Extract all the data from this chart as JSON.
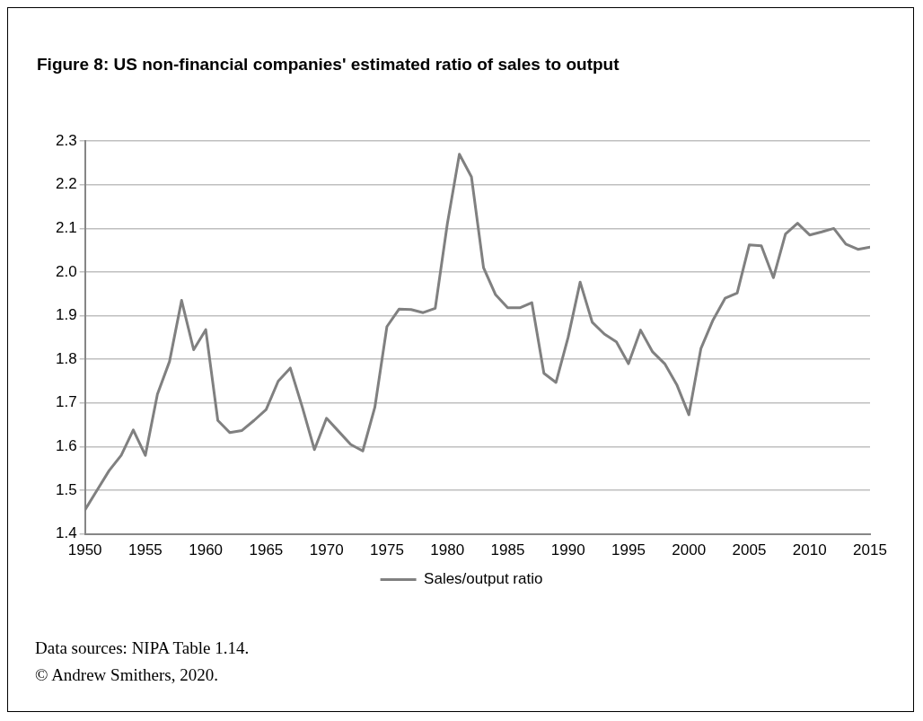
{
  "chart_data": {
    "type": "line",
    "title": "Figure 8: US non-financial companies' estimated ratio of sales to output",
    "x": [
      1950,
      1951,
      1952,
      1953,
      1954,
      1955,
      1956,
      1957,
      1958,
      1959,
      1960,
      1961,
      1962,
      1963,
      1964,
      1965,
      1966,
      1967,
      1968,
      1969,
      1970,
      1971,
      1972,
      1973,
      1974,
      1975,
      1976,
      1977,
      1978,
      1979,
      1980,
      1981,
      1982,
      1983,
      1984,
      1985,
      1986,
      1987,
      1988,
      1989,
      1990,
      1991,
      1992,
      1993,
      1994,
      1995,
      1996,
      1997,
      1998,
      1999,
      2000,
      2001,
      2002,
      2003,
      2004,
      2005,
      2006,
      2007,
      2008,
      2009,
      2010,
      2011,
      2012,
      2013,
      2014,
      2015
    ],
    "series": [
      {
        "name": "Sales/output ratio",
        "color": "#808080",
        "values": [
          1.455,
          1.5,
          1.545,
          1.58,
          1.638,
          1.58,
          1.72,
          1.795,
          1.935,
          1.822,
          1.868,
          1.66,
          1.632,
          1.637,
          1.66,
          1.685,
          1.75,
          1.78,
          1.69,
          1.593,
          1.665,
          1.635,
          1.605,
          1.59,
          1.69,
          1.875,
          1.915,
          1.914,
          1.907,
          1.917,
          2.11,
          2.27,
          2.218,
          2.01,
          1.948,
          1.918,
          1.918,
          1.93,
          1.768,
          1.747,
          1.85,
          1.977,
          1.885,
          1.858,
          1.84,
          1.79,
          1.867,
          1.817,
          1.79,
          1.742,
          1.673,
          1.825,
          1.89,
          1.94,
          1.952,
          2.062,
          2.06,
          1.987,
          2.087,
          2.112,
          2.085,
          2.092,
          2.1,
          2.064,
          2.052,
          2.057
        ]
      }
    ],
    "xlim": [
      1950,
      2015
    ],
    "xticks": [
      1950,
      1955,
      1960,
      1965,
      1970,
      1975,
      1980,
      1985,
      1990,
      1995,
      2000,
      2005,
      2010,
      2015
    ],
    "ylim": [
      1.4,
      2.3
    ],
    "yticks": [
      {
        "value": 1.4,
        "label": "1.4"
      },
      {
        "value": 1.5,
        "label": "1.5"
      },
      {
        "value": 1.6,
        "label": "1.6"
      },
      {
        "value": 1.7,
        "label": "1.7"
      },
      {
        "value": 1.8,
        "label": "1.8"
      },
      {
        "value": 1.9,
        "label": "1.9"
      },
      {
        "value": 2.0,
        "label": "2.0"
      },
      {
        "value": 2.1,
        "label": "2.1"
      },
      {
        "value": 2.2,
        "label": "2.2"
      },
      {
        "value": 2.3,
        "label": "2.3"
      }
    ],
    "grid": "y",
    "legend": "bottom",
    "marker": "none",
    "line_style": "solid",
    "annotations": [
      "Data sources: NIPA Table 1.14.",
      "© Andrew Smithers, 2020."
    ]
  }
}
